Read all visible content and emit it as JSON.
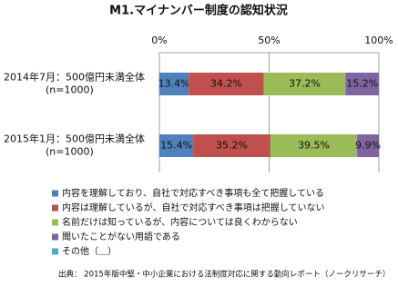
{
  "chart_data": {
    "type": "stacked_barh",
    "title": "M1.マイナンバー制度の認知状況",
    "categories": [
      "2014年7月：500億円未満全体",
      "2015年1月：500億円未満全体"
    ],
    "sample_sizes": [
      "(n=1000)",
      "(n=1000)"
    ],
    "series": [
      {
        "name": "内容を理解しており、自社で対応すべき事項も全て把握している",
        "color": "#4f81bd",
        "values": [
          13.4,
          15.4
        ],
        "value_labels": [
          "13.4%",
          "15.4%"
        ]
      },
      {
        "name": "内容は理解しているが、自社で対応すべき事項は把握していない",
        "color": "#c0504d",
        "values": [
          34.2,
          35.2
        ],
        "value_labels": [
          "34.2%",
          "35.2%"
        ]
      },
      {
        "name": "名前だけは知っているが、内容については良くわからない",
        "color": "#9bbb59",
        "values": [
          37.2,
          39.5
        ],
        "value_labels": [
          "37.2%",
          "39.5%"
        ]
      },
      {
        "name": "聞いたことがない用語である",
        "color": "#8064a2",
        "values": [
          15.2,
          9.9
        ],
        "value_labels": [
          "15.2%",
          "9.9%"
        ]
      },
      {
        "name": "その他（＿）",
        "color": "#4bacc6",
        "values": [
          0,
          0
        ],
        "value_labels": [
          null,
          null
        ]
      }
    ],
    "xlim": [
      0,
      100
    ],
    "xticks": [
      {
        "value": 0,
        "label": "0%"
      },
      {
        "value": 50,
        "label": "50%"
      },
      {
        "value": 100,
        "label": "100%"
      }
    ],
    "source": "出典： 2015年版中堅・中小企業における法制度対応に関する動向レポート（ノークリサーチ）"
  }
}
